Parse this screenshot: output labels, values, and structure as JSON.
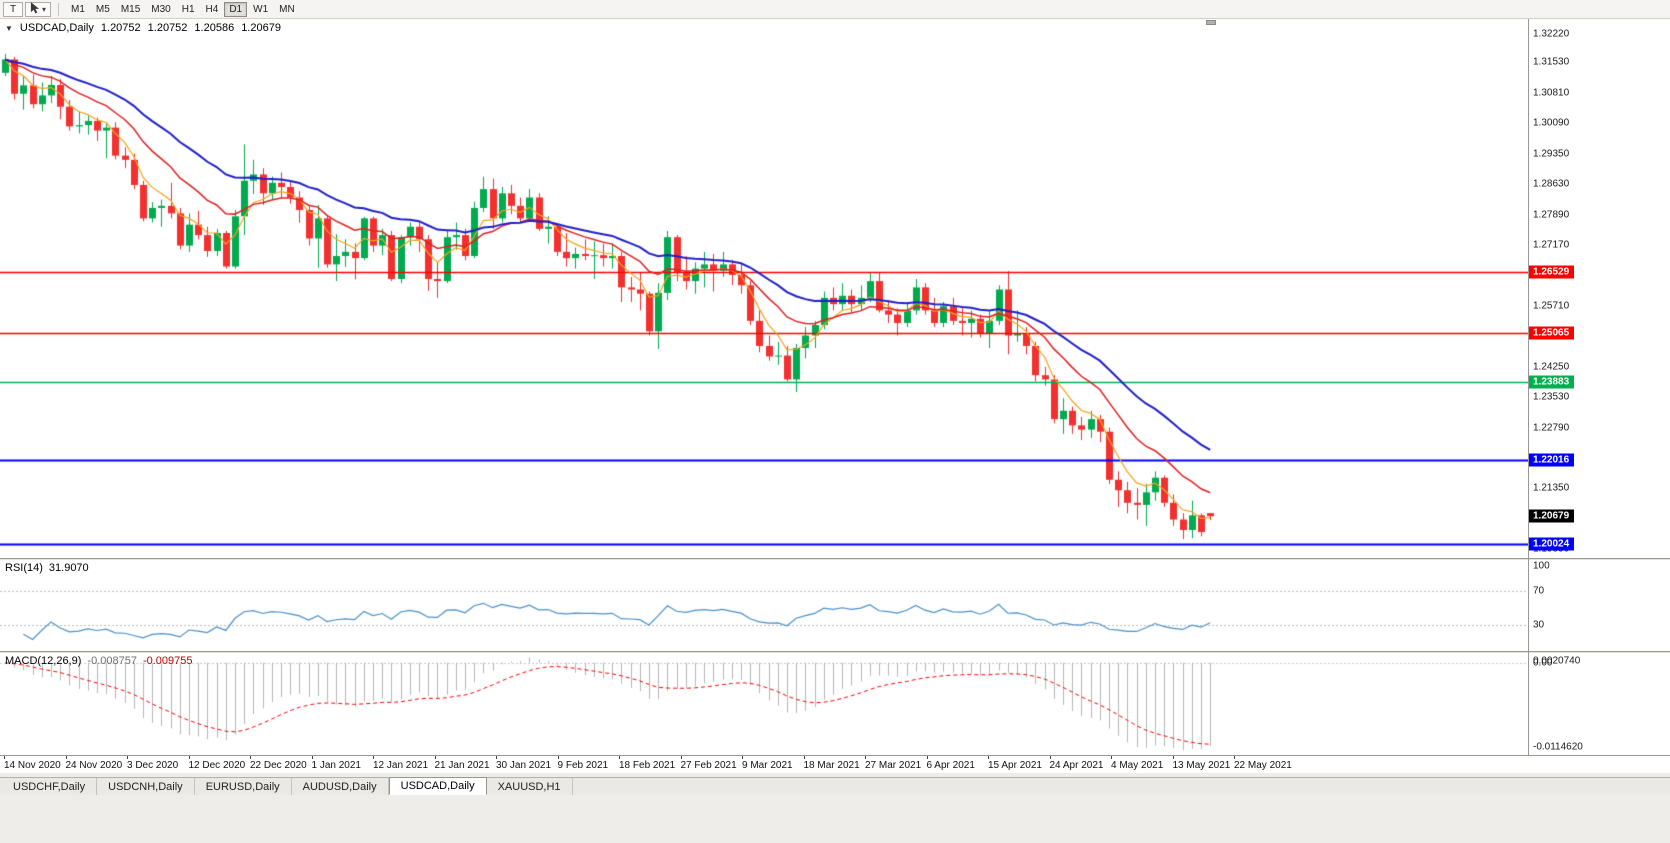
{
  "toolbar": {
    "text_tool_label": "T",
    "dropdown_glyph": "▾",
    "timeframes": [
      "M1",
      "M5",
      "M15",
      "M30",
      "H1",
      "H4",
      "D1",
      "W1",
      "MN"
    ],
    "active_timeframe": "D1"
  },
  "chart": {
    "title_arrow": "▼",
    "symbol_label": "USDCAD,Daily",
    "ohlc": {
      "open": "1.20752",
      "high": "1.20752",
      "low": "1.20586",
      "close": "1.20679"
    },
    "price_range": {
      "top": 1.324,
      "bottom": 1.1968
    },
    "colors": {
      "bull": "#00AB50",
      "bear": "#F23030",
      "background": "#FFFFFF"
    },
    "price_axis_labels": [
      "1.32220",
      "1.31530",
      "1.30810",
      "1.30090",
      "1.29350",
      "1.28630",
      "1.27890",
      "1.27170",
      "1.26430",
      "1.25710",
      "1.24990",
      "1.24250",
      "1.23530",
      "1.22790",
      "1.22070",
      "1.21350",
      "1.20610",
      "1.19890"
    ],
    "hlines": [
      {
        "label": "1.26529",
        "price": 1.26529,
        "color": "#FF0000",
        "width": 1.5
      },
      {
        "label": "1.25065",
        "price": 1.25065,
        "color": "#FF0000",
        "width": 1.5
      },
      {
        "label": "1.23883",
        "price": 1.23883,
        "color": "#00B050",
        "width": 1.5
      },
      {
        "label": "1.22016",
        "price": 1.22016,
        "color": "#0000FF",
        "width": 2
      },
      {
        "label": "1.20024",
        "price": 1.20024,
        "color": "#0000FF",
        "width": 2
      }
    ],
    "current_price": {
      "label": "1.20679",
      "value": 1.20679,
      "bg": "#000000",
      "fg": "#FFFFFF"
    }
  },
  "chart_data": {
    "type": "candlestick",
    "symbol": "USDCAD",
    "timeframe": "Daily",
    "note": "OHLC per bar, 14 Nov 2020 - 22 May 2021",
    "candles": [
      [
        1.3128,
        1.3173,
        1.312,
        1.316
      ],
      [
        1.316,
        1.3166,
        1.3064,
        1.3078
      ],
      [
        1.3078,
        1.312,
        1.304,
        1.3098
      ],
      [
        1.3098,
        1.3124,
        1.3043,
        1.3053
      ],
      [
        1.3053,
        1.3105,
        1.3036,
        1.3074
      ],
      [
        1.3074,
        1.312,
        1.3056,
        1.3099
      ],
      [
        1.3099,
        1.3113,
        1.3017,
        1.3047
      ],
      [
        1.3047,
        1.3063,
        1.299,
        1.3
      ],
      [
        1.3,
        1.3035,
        1.2983,
        1.3003
      ],
      [
        1.3003,
        1.3025,
        1.298,
        1.3013
      ],
      [
        1.3013,
        1.3021,
        1.2965,
        1.299
      ],
      [
        1.299,
        1.3009,
        1.2924,
        1.2997
      ],
      [
        1.2997,
        1.301,
        1.2921,
        1.293
      ],
      [
        1.293,
        1.295,
        1.29,
        1.292
      ],
      [
        1.292,
        1.2935,
        1.285,
        1.286
      ],
      [
        1.286,
        1.287,
        1.2773,
        1.278
      ],
      [
        1.278,
        1.2819,
        1.277,
        1.2805
      ],
      [
        1.2805,
        1.2825,
        1.276,
        1.281
      ],
      [
        1.281,
        1.2865,
        1.278,
        1.2792
      ],
      [
        1.2792,
        1.2805,
        1.2706,
        1.2715
      ],
      [
        1.2715,
        1.2792,
        1.27,
        1.2765
      ],
      [
        1.2765,
        1.2798,
        1.273,
        1.274
      ],
      [
        1.274,
        1.276,
        1.2688,
        1.2702
      ],
      [
        1.2702,
        1.2755,
        1.269,
        1.2745
      ],
      [
        1.2745,
        1.275,
        1.266,
        1.2665
      ],
      [
        1.2665,
        1.28,
        1.266,
        1.2785
      ],
      [
        1.2785,
        1.2957,
        1.274,
        1.287
      ],
      [
        1.287,
        1.292,
        1.2838,
        1.2885
      ],
      [
        1.2885,
        1.29,
        1.2812,
        1.284
      ],
      [
        1.284,
        1.288,
        1.2824,
        1.2865
      ],
      [
        1.2865,
        1.289,
        1.283,
        1.2855
      ],
      [
        1.2855,
        1.287,
        1.2815,
        1.283
      ],
      [
        1.283,
        1.2845,
        1.277,
        1.28
      ],
      [
        1.28,
        1.2812,
        1.2715,
        1.2732
      ],
      [
        1.2732,
        1.2812,
        1.2662,
        1.278
      ],
      [
        1.278,
        1.2788,
        1.2662,
        1.267
      ],
      [
        1.267,
        1.2742,
        1.263,
        1.269
      ],
      [
        1.269,
        1.273,
        1.2664,
        1.27
      ],
      [
        1.27,
        1.272,
        1.2634,
        1.2685
      ],
      [
        1.2685,
        1.2784,
        1.268,
        1.278
      ],
      [
        1.278,
        1.2784,
        1.27,
        1.2715
      ],
      [
        1.2715,
        1.2755,
        1.2692,
        1.274
      ],
      [
        1.274,
        1.275,
        1.263,
        1.2635
      ],
      [
        1.2635,
        1.274,
        1.2625,
        1.2735
      ],
      [
        1.2735,
        1.277,
        1.2715,
        1.276
      ],
      [
        1.276,
        1.2772,
        1.27,
        1.273
      ],
      [
        1.273,
        1.274,
        1.2607,
        1.2635
      ],
      [
        1.2635,
        1.2675,
        1.259,
        1.263
      ],
      [
        1.263,
        1.275,
        1.2625,
        1.2735
      ],
      [
        1.2735,
        1.277,
        1.2705,
        1.274
      ],
      [
        1.274,
        1.2755,
        1.268,
        1.269
      ],
      [
        1.269,
        1.282,
        1.2685,
        1.2805
      ],
      [
        1.2805,
        1.288,
        1.2795,
        1.285
      ],
      [
        1.285,
        1.2875,
        1.2755,
        1.278
      ],
      [
        1.278,
        1.2855,
        1.277,
        1.284
      ],
      [
        1.284,
        1.286,
        1.279,
        1.281
      ],
      [
        1.281,
        1.283,
        1.277,
        1.278
      ],
      [
        1.278,
        1.285,
        1.2775,
        1.283
      ],
      [
        1.283,
        1.284,
        1.275,
        1.2755
      ],
      [
        1.2755,
        1.2785,
        1.272,
        1.276
      ],
      [
        1.276,
        1.2765,
        1.269,
        1.27
      ],
      [
        1.27,
        1.2745,
        1.2665,
        1.2685
      ],
      [
        1.2685,
        1.271,
        1.266,
        1.2695
      ],
      [
        1.2695,
        1.273,
        1.268,
        1.269
      ],
      [
        1.269,
        1.2725,
        1.2635,
        1.2692
      ],
      [
        1.2692,
        1.272,
        1.2665,
        1.2685
      ],
      [
        1.2685,
        1.272,
        1.266,
        1.269
      ],
      [
        1.269,
        1.27,
        1.258,
        1.2615
      ],
      [
        1.2615,
        1.264,
        1.258,
        1.261
      ],
      [
        1.261,
        1.265,
        1.256,
        1.26
      ],
      [
        1.26,
        1.2605,
        1.25,
        1.251
      ],
      [
        1.251,
        1.2625,
        1.2468,
        1.2602
      ],
      [
        1.2602,
        1.275,
        1.2585,
        1.2735
      ],
      [
        1.2735,
        1.274,
        1.263,
        1.265
      ],
      [
        1.265,
        1.269,
        1.261,
        1.263
      ],
      [
        1.263,
        1.2675,
        1.26,
        1.266
      ],
      [
        1.266,
        1.27,
        1.2615,
        1.267
      ],
      [
        1.267,
        1.2695,
        1.2605,
        1.2655
      ],
      [
        1.2655,
        1.27,
        1.264,
        1.267
      ],
      [
        1.267,
        1.268,
        1.262,
        1.2645
      ],
      [
        1.2645,
        1.267,
        1.26,
        1.262
      ],
      [
        1.262,
        1.263,
        1.2525,
        1.2535
      ],
      [
        1.2535,
        1.256,
        1.246,
        1.2475
      ],
      [
        1.2475,
        1.25,
        1.244,
        1.245
      ],
      [
        1.245,
        1.2485,
        1.243,
        1.2452
      ],
      [
        1.2452,
        1.2475,
        1.239,
        1.2395
      ],
      [
        1.2395,
        1.248,
        1.2365,
        1.247
      ],
      [
        1.247,
        1.252,
        1.2445,
        1.25
      ],
      [
        1.25,
        1.2535,
        1.247,
        1.2525
      ],
      [
        1.2525,
        1.2605,
        1.2515,
        1.259
      ],
      [
        1.259,
        1.2615,
        1.256,
        1.2575
      ],
      [
        1.2575,
        1.2625,
        1.256,
        1.2595
      ],
      [
        1.2595,
        1.261,
        1.2555,
        1.2575
      ],
      [
        1.2575,
        1.262,
        1.256,
        1.259
      ],
      [
        1.259,
        1.265,
        1.258,
        1.263
      ],
      [
        1.263,
        1.265,
        1.2555,
        1.256
      ],
      [
        1.256,
        1.2585,
        1.253,
        1.255
      ],
      [
        1.255,
        1.2565,
        1.25,
        1.253
      ],
      [
        1.253,
        1.258,
        1.252,
        1.256
      ],
      [
        1.256,
        1.2635,
        1.255,
        1.2615
      ],
      [
        1.2615,
        1.2625,
        1.255,
        1.256
      ],
      [
        1.256,
        1.259,
        1.252,
        1.253
      ],
      [
        1.253,
        1.258,
        1.252,
        1.257
      ],
      [
        1.257,
        1.259,
        1.2525,
        1.2535
      ],
      [
        1.2535,
        1.2565,
        1.25,
        1.253
      ],
      [
        1.253,
        1.256,
        1.2495,
        1.254
      ],
      [
        1.254,
        1.255,
        1.2495,
        1.2505
      ],
      [
        1.2505,
        1.256,
        1.247,
        1.2535
      ],
      [
        1.2535,
        1.262,
        1.2525,
        1.261
      ],
      [
        1.261,
        1.2654,
        1.2455,
        1.25
      ],
      [
        1.25,
        1.256,
        1.2485,
        1.2505
      ],
      [
        1.2505,
        1.252,
        1.2455,
        1.2475
      ],
      [
        1.2475,
        1.2485,
        1.239,
        1.2405
      ],
      [
        1.2405,
        1.2425,
        1.238,
        1.2395
      ],
      [
        1.2395,
        1.2405,
        1.229,
        1.23
      ],
      [
        1.23,
        1.235,
        1.2265,
        1.232
      ],
      [
        1.232,
        1.233,
        1.2265,
        1.2285
      ],
      [
        1.2285,
        1.2305,
        1.225,
        1.2275
      ],
      [
        1.2275,
        1.232,
        1.2255,
        1.23
      ],
      [
        1.23,
        1.231,
        1.2245,
        1.227
      ],
      [
        1.227,
        1.228,
        1.2145,
        1.2155
      ],
      [
        1.2155,
        1.2175,
        1.209,
        1.213
      ],
      [
        1.213,
        1.215,
        1.2075,
        1.21
      ],
      [
        1.21,
        1.2135,
        1.206,
        1.2095
      ],
      [
        1.2095,
        1.2145,
        1.2045,
        1.2125
      ],
      [
        1.2125,
        1.2175,
        1.2105,
        1.216
      ],
      [
        1.216,
        1.2165,
        1.209,
        1.21
      ],
      [
        1.21,
        1.212,
        1.2045,
        1.206
      ],
      [
        1.206,
        1.2075,
        1.2013,
        1.2035
      ],
      [
        1.2035,
        1.2105,
        1.2015,
        1.207
      ],
      [
        1.207,
        1.2075,
        1.202,
        1.203
      ],
      [
        1.20752,
        1.20752,
        1.20586,
        1.20679
      ]
    ],
    "moving_averages": [
      {
        "name": "ma-fast",
        "period": 5,
        "color": "#F7A21B",
        "width": 1.2
      },
      {
        "name": "ma-mid",
        "period": 13,
        "color": "#E02020",
        "width": 1.5
      },
      {
        "name": "ma-slow",
        "period": 26,
        "color": "#2020C8",
        "width": 2
      }
    ]
  },
  "rsi": {
    "name": "RSI(14)",
    "value": "31.9070",
    "period": 14,
    "levels": [
      70,
      30
    ],
    "axis_labels": [
      "100",
      "70",
      "30"
    ],
    "scale_max": 107,
    "line_color": "#4A90CB"
  },
  "macd": {
    "name": "MACD(12,26,9)",
    "value_main": "-0.008757",
    "value_signal": "-0.009755",
    "fast": 12,
    "slow": 26,
    "signal": 9,
    "axis_labels": [
      "0.0020740",
      "0.00",
      "-0.0114620"
    ],
    "histogram_color": "#B6B6B6",
    "signal_color": "#FF0000"
  },
  "date_axis": {
    "labels": [
      "14 Nov 2020",
      "24 Nov 2020",
      "3 Dec 2020",
      "12 Dec 2020",
      "22 Dec 2020",
      "1 Jan 2021",
      "12 Jan 2021",
      "21 Jan 2021",
      "30 Jan 2021",
      "9 Feb 2021",
      "18 Feb 2021",
      "27 Feb 2021",
      "9 Mar 2021",
      "18 Mar 2021",
      "27 Mar 2021",
      "6 Apr 2021",
      "15 Apr 2021",
      "24 Apr 2021",
      "4 May 2021",
      "13 May 2021",
      "22 May 2021"
    ]
  },
  "tabs": {
    "items": [
      "USDCHF,Daily",
      "USDCNH,Daily",
      "EURUSD,Daily",
      "AUDUSD,Daily",
      "USDCAD,Daily",
      "XAUUSD,H1"
    ],
    "active": "USDCAD,Daily"
  }
}
